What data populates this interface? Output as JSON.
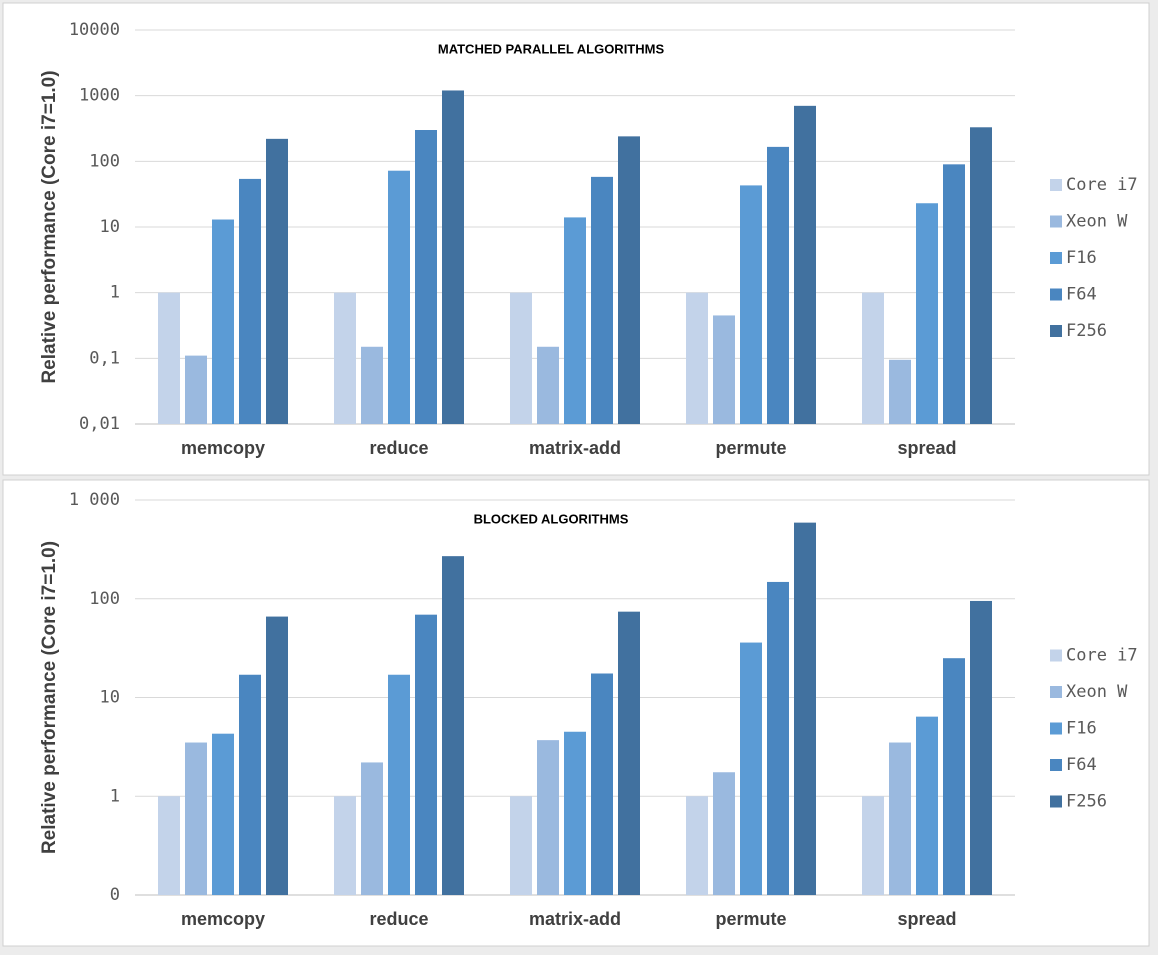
{
  "chart_data": [
    {
      "type": "bar",
      "title": "MATCHED PARALLEL ALGORITHMS",
      "y_label": "Relative performance (Core i7=1.0)",
      "categories": [
        "memcopy",
        "reduce",
        "matrix-add",
        "permute",
        "spread"
      ],
      "series": [
        {
          "name": "Core i7",
          "color": "#c3d3ea",
          "values": [
            1,
            1,
            1,
            1,
            1
          ]
        },
        {
          "name": "Xeon W",
          "color": "#9ab9df",
          "values": [
            0.11,
            0.15,
            0.15,
            0.45,
            0.095
          ]
        },
        {
          "name": "F16",
          "color": "#5b9bd5",
          "values": [
            13,
            72,
            14,
            43,
            23
          ]
        },
        {
          "name": "F64",
          "color": "#4a86c0",
          "values": [
            54,
            300,
            58,
            166,
            90
          ]
        },
        {
          "name": "F256",
          "color": "#41719f",
          "values": [
            220,
            1200,
            240,
            700,
            330
          ]
        }
      ],
      "log_y": true,
      "ylim": [
        0.01,
        10000
      ],
      "yticks": [
        {
          "value": 0.01,
          "label": "0,01"
        },
        {
          "value": 0.1,
          "label": "0,1"
        },
        1,
        10,
        100,
        1000,
        10000
      ],
      "grid": true,
      "legend": "right"
    },
    {
      "type": "bar",
      "title": "BLOCKED ALGORITHMS",
      "y_label": "Relative performance (Core i7=1.0)",
      "categories": [
        "memcopy",
        "reduce",
        "matrix-add",
        "permute",
        "spread"
      ],
      "series": [
        {
          "name": "Core i7",
          "color": "#c3d3ea",
          "values": [
            1,
            1,
            1,
            1,
            1
          ]
        },
        {
          "name": "Xeon W",
          "color": "#9ab9df",
          "values": [
            3.5,
            2.2,
            3.7,
            1.75,
            3.5
          ]
        },
        {
          "name": "F16",
          "color": "#5b9bd5",
          "values": [
            4.3,
            17,
            4.5,
            36,
            6.4
          ]
        },
        {
          "name": "F64",
          "color": "#4a86c0",
          "values": [
            17,
            69,
            17.5,
            148,
            25
          ]
        },
        {
          "name": "F256",
          "color": "#41719f",
          "values": [
            66,
            270,
            74,
            590,
            95
          ]
        }
      ],
      "log_y": true,
      "ylim": [
        0.1,
        1000
      ],
      "yticks": [
        {
          "value": 0.1,
          "label": "0"
        },
        1,
        10,
        100,
        {
          "value": 1000,
          "label": "1 000"
        }
      ],
      "grid": true,
      "legend": "right"
    }
  ]
}
